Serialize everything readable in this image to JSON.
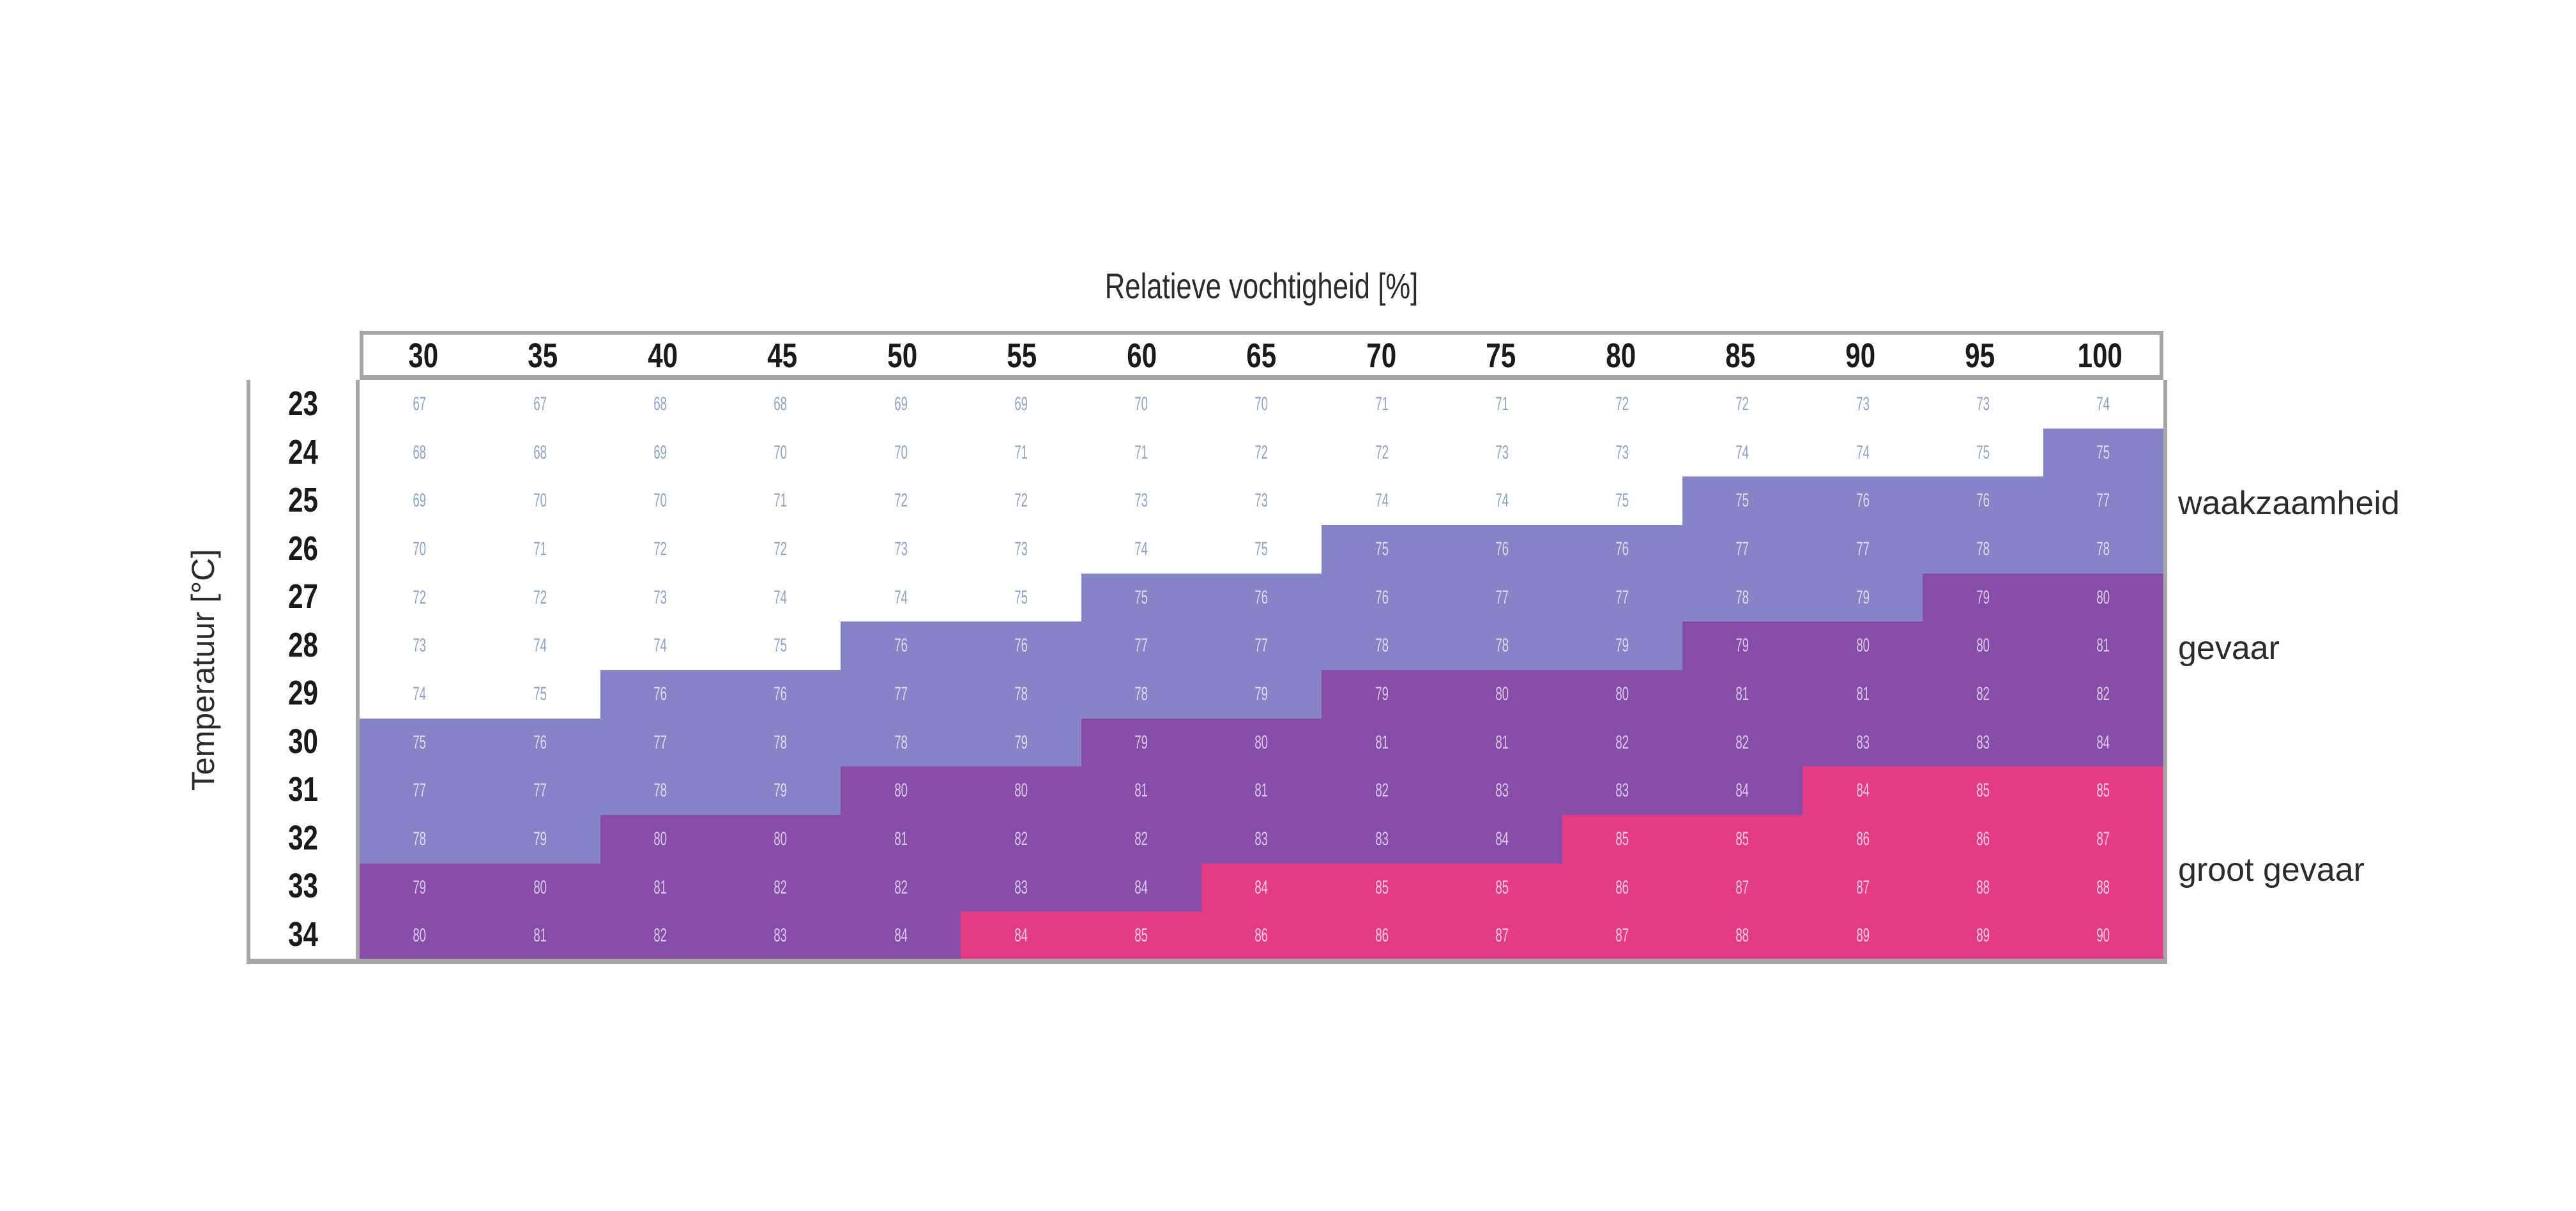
{
  "title": "Relatieve vochtigheid [%]",
  "ylabel": "Temperatuur [°C]",
  "columns": [
    "30",
    "35",
    "40",
    "45",
    "50",
    "55",
    "60",
    "65",
    "70",
    "75",
    "80",
    "85",
    "90",
    "95",
    "100"
  ],
  "rows": [
    "23",
    "24",
    "25",
    "26",
    "27",
    "28",
    "29",
    "30",
    "31",
    "32",
    "33",
    "34"
  ],
  "zone_labels": [
    {
      "label": "waakzaamheid",
      "color": "#8683c6"
    },
    {
      "label": "gevaar",
      "color": "#864ea8"
    },
    {
      "label": "groot gevaar",
      "color": "#e33c84"
    }
  ],
  "colors": {
    "none": "#ffffff",
    "waakzaamheid": "#8683c6",
    "gevaar": "#864ea8",
    "groot_gevaar": "#e33c84",
    "border": "#a6a6a6"
  },
  "chart_data": {
    "type": "heatmap",
    "title": "Relatieve vochtigheid [%]",
    "xlabel": "Relatieve vochtigheid [%]",
    "ylabel": "Temperatuur [°C]",
    "x": [
      30,
      35,
      40,
      45,
      50,
      55,
      60,
      65,
      70,
      75,
      80,
      85,
      90,
      95,
      100
    ],
    "y": [
      23,
      24,
      25,
      26,
      27,
      28,
      29,
      30,
      31,
      32,
      33,
      34
    ],
    "values": [
      [
        67,
        67,
        68,
        68,
        69,
        69,
        70,
        70,
        71,
        71,
        72,
        72,
        73,
        73,
        74
      ],
      [
        68,
        68,
        69,
        70,
        70,
        71,
        71,
        72,
        72,
        73,
        73,
        74,
        74,
        75,
        75
      ],
      [
        69,
        70,
        70,
        71,
        72,
        72,
        73,
        73,
        74,
        74,
        75,
        75,
        76,
        76,
        77
      ],
      [
        70,
        71,
        72,
        72,
        73,
        73,
        74,
        75,
        75,
        76,
        76,
        77,
        77,
        78,
        78
      ],
      [
        72,
        72,
        73,
        74,
        74,
        75,
        75,
        76,
        76,
        77,
        77,
        78,
        79,
        79,
        80
      ],
      [
        73,
        74,
        74,
        75,
        76,
        76,
        77,
        77,
        78,
        78,
        79,
        79,
        80,
        80,
        81
      ],
      [
        74,
        75,
        76,
        76,
        77,
        78,
        78,
        79,
        79,
        80,
        80,
        81,
        81,
        82,
        82
      ],
      [
        75,
        76,
        77,
        78,
        78,
        79,
        79,
        80,
        81,
        81,
        82,
        82,
        83,
        83,
        84
      ],
      [
        77,
        77,
        78,
        79,
        80,
        80,
        81,
        81,
        82,
        83,
        83,
        84,
        84,
        85,
        85
      ],
      [
        78,
        79,
        80,
        80,
        81,
        82,
        82,
        83,
        83,
        84,
        85,
        85,
        86,
        86,
        87
      ],
      [
        79,
        80,
        81,
        82,
        82,
        83,
        84,
        84,
        85,
        85,
        86,
        87,
        87,
        88,
        88
      ],
      [
        80,
        81,
        82,
        83,
        84,
        84,
        85,
        86,
        86,
        87,
        87,
        88,
        89,
        89,
        90
      ]
    ],
    "zones": [
      [
        0,
        0,
        0,
        0,
        0,
        0,
        0,
        0,
        0,
        0,
        0,
        0,
        0,
        0,
        0
      ],
      [
        0,
        0,
        0,
        0,
        0,
        0,
        0,
        0,
        0,
        0,
        0,
        0,
        0,
        0,
        1
      ],
      [
        0,
        0,
        0,
        0,
        0,
        0,
        0,
        0,
        0,
        0,
        0,
        1,
        1,
        1,
        1
      ],
      [
        0,
        0,
        0,
        0,
        0,
        0,
        0,
        0,
        1,
        1,
        1,
        1,
        1,
        1,
        1
      ],
      [
        0,
        0,
        0,
        0,
        0,
        0,
        1,
        1,
        1,
        1,
        1,
        1,
        1,
        2,
        2
      ],
      [
        0,
        0,
        0,
        0,
        1,
        1,
        1,
        1,
        1,
        1,
        1,
        2,
        2,
        2,
        2
      ],
      [
        0,
        0,
        1,
        1,
        1,
        1,
        1,
        1,
        2,
        2,
        2,
        2,
        2,
        2,
        2
      ],
      [
        1,
        1,
        1,
        1,
        1,
        1,
        2,
        2,
        2,
        2,
        2,
        2,
        2,
        2,
        2
      ],
      [
        1,
        1,
        1,
        1,
        2,
        2,
        2,
        2,
        2,
        2,
        2,
        2,
        3,
        3,
        3
      ],
      [
        1,
        1,
        2,
        2,
        2,
        2,
        2,
        2,
        2,
        2,
        3,
        3,
        3,
        3,
        3
      ],
      [
        2,
        2,
        2,
        2,
        2,
        2,
        2,
        3,
        3,
        3,
        3,
        3,
        3,
        3,
        3
      ],
      [
        2,
        2,
        2,
        2,
        2,
        3,
        3,
        3,
        3,
        3,
        3,
        3,
        3,
        3,
        3
      ]
    ],
    "legend": [
      "waakzaamheid",
      "gevaar",
      "groot gevaar"
    ],
    "legend_position": "right"
  }
}
